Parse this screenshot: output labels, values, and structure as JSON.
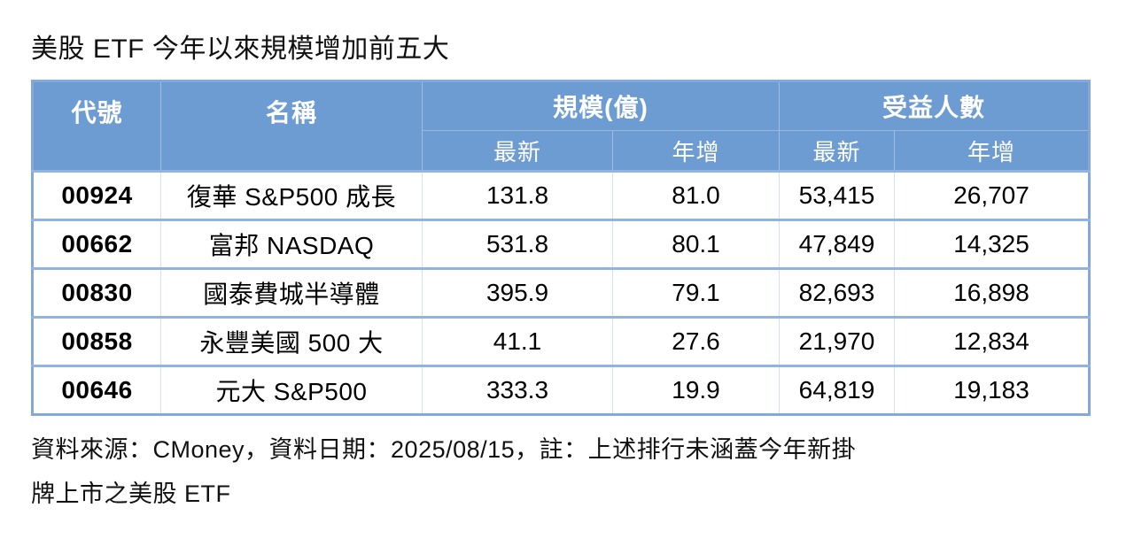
{
  "title": "美股 ETF 今年以來規模增加前五大",
  "table": {
    "headers": {
      "code": "代號",
      "name": "名稱",
      "scale_group": "規模(億)",
      "holders_group": "受益人數",
      "scale_latest": "最新",
      "scale_yoy": "年增",
      "holders_latest": "最新",
      "holders_yoy": "年增"
    },
    "rows": [
      {
        "code": "00924",
        "name": "復華 S&P500 成長",
        "scale_latest": "131.8",
        "scale_yoy": "81.0",
        "holders_latest": "53,415",
        "holders_yoy": "26,707"
      },
      {
        "code": "00662",
        "name": "富邦 NASDAQ",
        "scale_latest": "531.8",
        "scale_yoy": "80.1",
        "holders_latest": "47,849",
        "holders_yoy": "14,325"
      },
      {
        "code": "00830",
        "name": "國泰費城半導體",
        "scale_latest": "395.9",
        "scale_yoy": "79.1",
        "holders_latest": "82,693",
        "holders_yoy": "16,898"
      },
      {
        "code": "00858",
        "name": "永豐美國 500 大",
        "scale_latest": "41.1",
        "scale_yoy": "27.6",
        "holders_latest": "21,970",
        "holders_yoy": "12,834"
      },
      {
        "code": "00646",
        "name": "元大 S&P500",
        "scale_latest": "333.3",
        "scale_yoy": "19.9",
        "holders_latest": "64,819",
        "holders_yoy": "19,183"
      }
    ]
  },
  "footer": {
    "line1": "資料來源：CMoney，資料日期：2025/08/15，註：上述排行未涵蓋今年新掛",
    "line2": "牌上市之美股 ETF"
  },
  "colors": {
    "header_bg": "#6D9CD2",
    "border": "#83A9DB",
    "row_line": "#8FB3E2",
    "header_text": "#FFFFFF",
    "text": "#000000"
  },
  "chart_data": {
    "type": "table",
    "title": "美股 ETF 今年以來規模增加前五大",
    "column_groups": [
      "代號",
      "名稱",
      "規模(億)",
      "受益人數"
    ],
    "columns": [
      "代號",
      "名稱",
      "規模(億) 最新",
      "規模(億) 年增",
      "受益人數 最新",
      "受益人數 年增"
    ],
    "rows": [
      [
        "00924",
        "復華 S&P500 成長",
        131.8,
        81.0,
        53415,
        26707
      ],
      [
        "00662",
        "富邦 NASDAQ",
        531.8,
        80.1,
        47849,
        14325
      ],
      [
        "00830",
        "國泰費城半導體",
        395.9,
        79.1,
        82693,
        16898
      ],
      [
        "00858",
        "永豐美國 500 大",
        41.1,
        27.6,
        21970,
        12834
      ],
      [
        "00646",
        "元大 S&P500",
        333.3,
        19.9,
        64819,
        19183
      ]
    ],
    "source_note": "資料來源：CMoney，資料日期：2025/08/15，註：上述排行未涵蓋今年新掛牌上市之美股 ETF"
  }
}
